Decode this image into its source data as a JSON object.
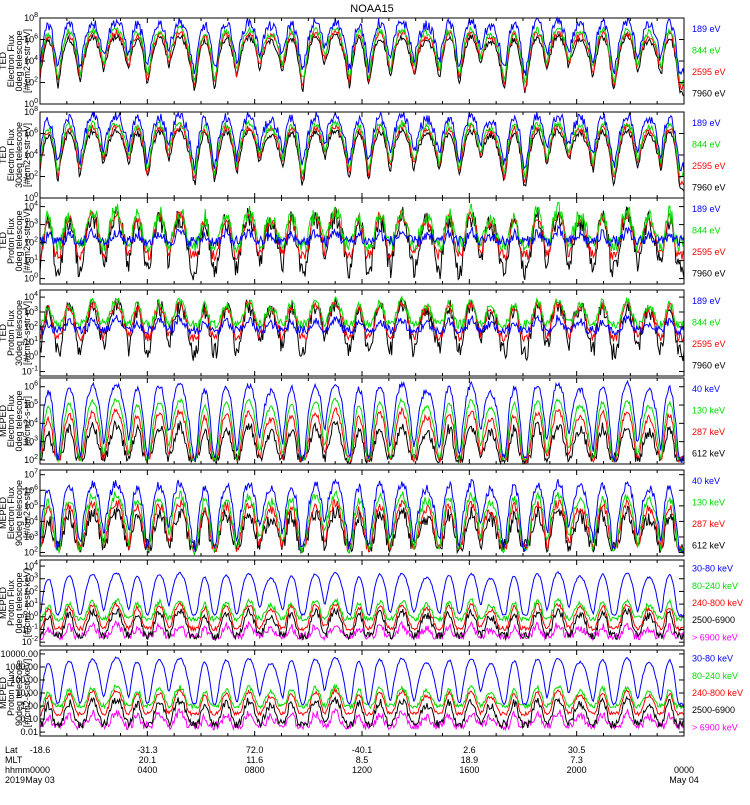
{
  "chart_data": {
    "type": "line",
    "title": "NOAA15",
    "x_axis": {
      "rows": [
        {
          "label": "Lat",
          "values": [
            "-18.6",
            "-31.3",
            "72.0",
            "-40.1",
            "2.6",
            "30.5",
            ""
          ]
        },
        {
          "label": "MLT",
          "values": [
            "",
            "20.1",
            "11.6",
            "8.5",
            "18.9",
            "7.3",
            ""
          ]
        },
        {
          "label": "hhmm",
          "values": [
            "0000",
            "0400",
            "0800",
            "1200",
            "1600",
            "2000",
            "0000"
          ]
        },
        {
          "label": "2019",
          "values": [
            "May 03",
            "",
            "",
            "",
            "",
            "",
            "May 04"
          ]
        }
      ],
      "start": "2019-05-03 00:00",
      "end": "2019-05-04 00:00"
    },
    "panels": [
      {
        "ylabel": [
          "TED",
          "Electron Flux",
          "0deg telescope",
          "[#/cm2-s-str-eV]"
        ],
        "yscale": "log",
        "yticks": [
          "10^0",
          "10^2",
          "10^4",
          "10^6",
          "10^8"
        ],
        "ylim": [
          1,
          100000000
        ],
        "series": [
          {
            "name": "7960 eV",
            "color": "#000000",
            "base": 8,
            "peak": 2000000,
            "noise": 2
          },
          {
            "name": "2595 eV",
            "color": "#ff0000",
            "base": 30,
            "peak": 5000000,
            "noise": 2
          },
          {
            "name": "844 eV",
            "color": "#00dd00",
            "base": 120,
            "peak": 10000000,
            "noise": 2
          },
          {
            "name": "189 eV",
            "color": "#0000ff",
            "base": 900,
            "peak": 50000000,
            "noise": 3
          }
        ]
      },
      {
        "ylabel": [
          "TED",
          "Electron Flux",
          "30deg telescope",
          "[#/cm2-s-str-eV]"
        ],
        "yscale": "log",
        "yticks": [
          "10^0",
          "10^2",
          "10^4",
          "10^6",
          "10^8"
        ],
        "ylim": [
          1,
          100000000
        ],
        "series": [
          {
            "name": "7960 eV",
            "color": "#000000",
            "base": 8,
            "peak": 2000000,
            "noise": 2
          },
          {
            "name": "2595 eV",
            "color": "#ff0000",
            "base": 30,
            "peak": 5000000,
            "noise": 2
          },
          {
            "name": "844 eV",
            "color": "#00dd00",
            "base": 120,
            "peak": 10000000,
            "noise": 2
          },
          {
            "name": "189 eV",
            "color": "#0000ff",
            "base": 700,
            "peak": 50000000,
            "noise": 3
          }
        ]
      },
      {
        "ylabel": [
          "TED",
          "Proton Flux",
          "0deg telescope",
          "[#/cm2-s-str-eV]"
        ],
        "yscale": "log",
        "yticks": [
          "10^0",
          "10^1",
          "10^2",
          "10^3",
          "10^4"
        ],
        "ylim": [
          0.5,
          30000
        ],
        "series": [
          {
            "name": "7960 eV",
            "color": "#000000",
            "base": 3,
            "peak": 3000,
            "noise": 4
          },
          {
            "name": "2595 eV",
            "color": "#ff0000",
            "base": 20,
            "peak": 4000,
            "noise": 2
          },
          {
            "name": "844 eV",
            "color": "#00dd00",
            "base": 80,
            "peak": 6000,
            "noise": 3
          },
          {
            "name": "189 eV",
            "color": "#0000ff",
            "base": 120,
            "peak": 300,
            "noise": 2
          }
        ]
      },
      {
        "ylabel": [
          "TED",
          "Proton Flux",
          "30deg telescope",
          "[#/cm2-s-str-eV]"
        ],
        "yscale": "log",
        "yticks": [
          "10^-1",
          "10^0",
          "10^1",
          "10^2",
          "10^3",
          "10^4"
        ],
        "ylim": [
          0.05,
          30000
        ],
        "series": [
          {
            "name": "7960 eV",
            "color": "#000000",
            "base": 2,
            "peak": 3000,
            "noise": 4
          },
          {
            "name": "2595 eV",
            "color": "#ff0000",
            "base": 20,
            "peak": 4000,
            "noise": 2
          },
          {
            "name": "844 eV",
            "color": "#00dd00",
            "base": 150,
            "peak": 6000,
            "noise": 2
          },
          {
            "name": "189 eV",
            "color": "#0000ff",
            "base": 60,
            "peak": 300,
            "noise": 2
          }
        ]
      },
      {
        "ylabel": [
          "MEPED",
          "Electron Flux",
          "0deg telescope",
          "[#/cm2-s-str]"
        ],
        "yscale": "log",
        "yticks": [
          "10^2",
          "10^3",
          "10^4",
          "10^5",
          "10^6"
        ],
        "ylim": [
          60,
          3000000
        ],
        "series": [
          {
            "name": "612 keV",
            "color": "#000000",
            "base": 120,
            "peak": 8000,
            "noise": 2
          },
          {
            "name": "287 keV",
            "color": "#ff0000",
            "base": 110,
            "peak": 50000,
            "noise": 1.5
          },
          {
            "name": "130 keV",
            "color": "#00dd00",
            "base": 100,
            "peak": 200000,
            "noise": 1.3
          },
          {
            "name": "40 keV",
            "color": "#0000ff",
            "base": 110,
            "peak": 1500000,
            "noise": 1.5
          }
        ]
      },
      {
        "ylabel": [
          "MEPED",
          "Electron Flux",
          "90deg telescope",
          "[#/cm2-s-str]"
        ],
        "yscale": "log",
        "yticks": [
          "10^2",
          "10^3",
          "10^4",
          "10^5",
          "10^6",
          "10^7"
        ],
        "ylim": [
          60,
          20000000
        ],
        "series": [
          {
            "name": "612 keV",
            "color": "#000000",
            "base": 250,
            "peak": 40000,
            "noise": 3
          },
          {
            "name": "287 keV",
            "color": "#ff0000",
            "base": 200,
            "peak": 150000,
            "noise": 2
          },
          {
            "name": "130 keV",
            "color": "#00dd00",
            "base": 130,
            "peak": 500000,
            "noise": 2
          },
          {
            "name": "40 keV",
            "color": "#0000ff",
            "base": 150,
            "peak": 3000000,
            "noise": 2
          }
        ]
      },
      {
        "ylabel": [
          "MEPED",
          "Proton Flux",
          "0deg telescope",
          "[#/cm2-s-str-keV]"
        ],
        "yscale": "log",
        "yticks": [
          "10^-2",
          "10^-1",
          "10^0",
          "10^1",
          "10^2",
          "10^3",
          "10^4"
        ],
        "ylim": [
          0.005,
          30000
        ],
        "series": [
          {
            "name": "> 6900 keV",
            "color": "#ff00ff",
            "base": 0.03,
            "peak": 0.2,
            "noise": 2
          },
          {
            "name": "2500-6900",
            "color": "#000000",
            "base": 0.03,
            "peak": 3,
            "noise": 2
          },
          {
            "name": "240-800 keV",
            "color": "#ff0000",
            "base": 0.12,
            "peak": 10,
            "noise": 1.5
          },
          {
            "name": "80-240 keV",
            "color": "#00dd00",
            "base": 0.7,
            "peak": 20,
            "noise": 1.6
          },
          {
            "name": "30-80 keV",
            "color": "#0000ff",
            "base": 1.4,
            "peak": 3000,
            "noise": 1.2
          }
        ]
      },
      {
        "ylabel": [
          "MEPED",
          "Proton Flux",
          "90deg telescope",
          "[#/cm2-s-str-keV]"
        ],
        "yscale": "log",
        "yticks": [
          "0.01",
          "0.10",
          "1.00",
          "10.00",
          "100.00",
          "1000.00",
          "10000.00"
        ],
        "ylim": [
          0.005,
          20000
        ],
        "series": [
          {
            "name": "> 6900 keV",
            "color": "#ff00ff",
            "base": 0.03,
            "peak": 0.3,
            "noise": 2
          },
          {
            "name": "2500-6900",
            "color": "#000000",
            "base": 0.04,
            "peak": 3,
            "noise": 2
          },
          {
            "name": "240-800 keV",
            "color": "#ff0000",
            "base": 0.25,
            "peak": 15,
            "noise": 1.4
          },
          {
            "name": "80-240 keV",
            "color": "#00dd00",
            "base": 1.0,
            "peak": 30,
            "noise": 1.5
          },
          {
            "name": "30-80 keV",
            "color": "#0000ff",
            "base": 1.4,
            "peak": 5000,
            "noise": 1.2
          }
        ]
      }
    ]
  }
}
